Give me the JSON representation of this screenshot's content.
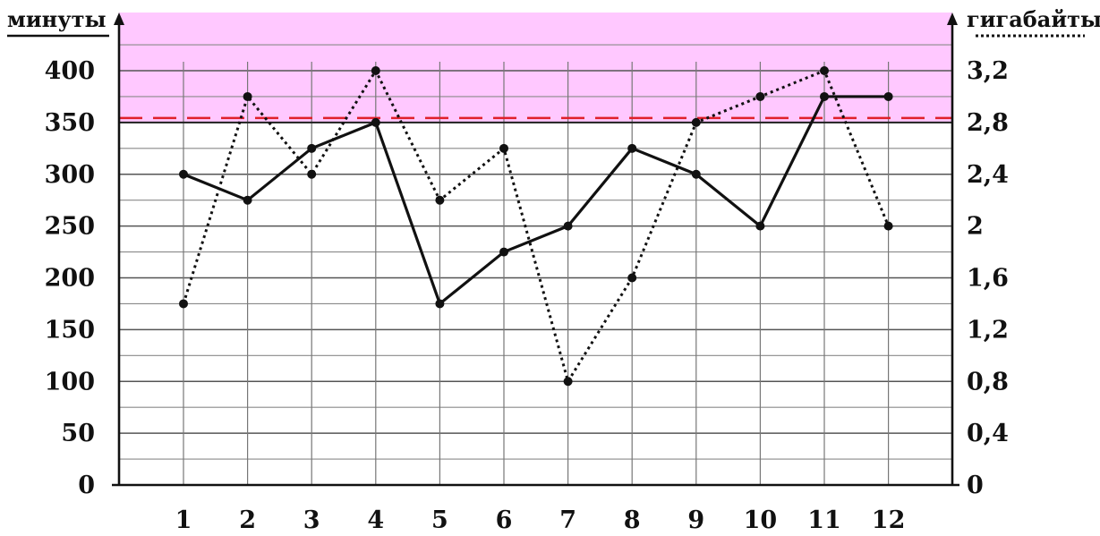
{
  "chart_data": {
    "type": "line",
    "title": "",
    "xlabel": "",
    "ylabel_left": "минуты",
    "ylabel_right": "гигабайты",
    "categories": [
      "1",
      "2",
      "3",
      "4",
      "5",
      "6",
      "7",
      "8",
      "9",
      "10",
      "11",
      "12"
    ],
    "left_axis": {
      "range": [
        0,
        400
      ],
      "ticks": [
        "0",
        "50",
        "100",
        "150",
        "200",
        "250",
        "300",
        "350",
        "400"
      ]
    },
    "right_axis": {
      "range": [
        0,
        3.2
      ],
      "ticks": [
        "0",
        "0,4",
        "0,8",
        "1,2",
        "1,6",
        "2",
        "2,4",
        "2,8",
        "3,2"
      ]
    },
    "series": [
      {
        "style": "solid",
        "axis": "left",
        "values": [
          300,
          275,
          325,
          350,
          175,
          225,
          250,
          325,
          300,
          250,
          375,
          375
        ]
      },
      {
        "style": "dotted",
        "axis": "right",
        "values": [
          1.4,
          3.0,
          2.4,
          3.2,
          2.2,
          2.6,
          0.8,
          1.6,
          2.8,
          3.0,
          3.2,
          2.0
        ]
      }
    ],
    "threshold_left": 350,
    "shaded_region_color": "#ffc8ff",
    "threshold_line_color": "#e0202a",
    "grid": true
  }
}
